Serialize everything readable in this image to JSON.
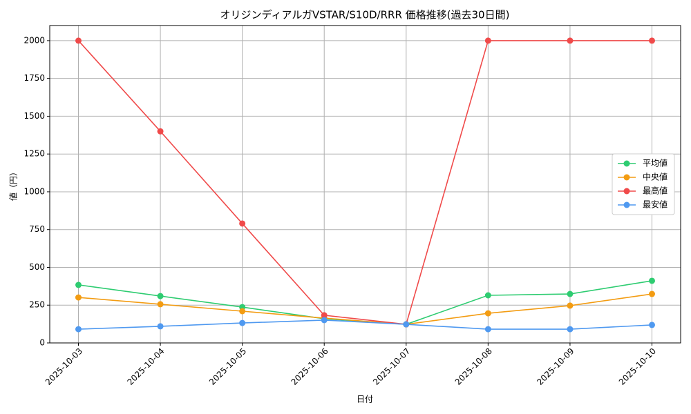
{
  "chart_data": {
    "type": "line",
    "title": "オリジンディアルガVSTAR/S10D/RRR 価格推移(過去30日間)",
    "x_label": "日付",
    "y_label": "値（円）",
    "categories": [
      "2025-10-03",
      "2025-10-04",
      "2025-10-05",
      "2025-10-06",
      "2025-10-07",
      "2025-10-08",
      "2025-10-09",
      "2025-10-10"
    ],
    "series": [
      {
        "name": "平均値",
        "color": "#2ecc71",
        "values": [
          384,
          310,
          237,
          160,
          123,
          315,
          324,
          411
        ]
      },
      {
        "name": "中央値",
        "color": "#f39c12",
        "values": [
          301,
          256,
          210,
          164,
          123,
          196,
          247,
          324
        ]
      },
      {
        "name": "最高値",
        "color": "#f04a4a",
        "values": [
          2000,
          1400,
          790,
          183,
          123,
          2000,
          2000,
          2000
        ]
      },
      {
        "name": "最安値",
        "color": "#4f99f0",
        "values": [
          91,
          110,
          132,
          151,
          123,
          91,
          91,
          119
        ]
      }
    ],
    "ylim": [
      0,
      2100
    ],
    "yticks": [
      0,
      250,
      500,
      750,
      1000,
      1250,
      1500,
      1750,
      2000
    ],
    "grid": true,
    "legend": "center right"
  }
}
